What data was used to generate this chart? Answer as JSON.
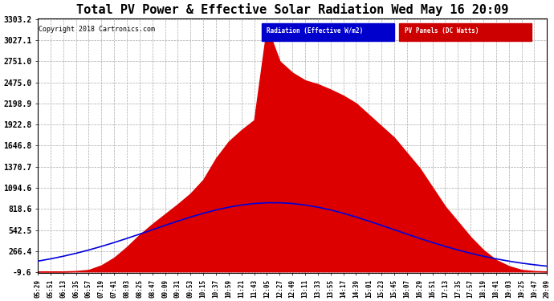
{
  "title": "Total PV Power & Effective Solar Radiation Wed May 16 20:09",
  "copyright": "Copyright 2018 Cartronics.com",
  "legend_labels": [
    "Radiation (Effective W/m2)",
    "PV Panels (DC Watts)"
  ],
  "legend_colors": [
    "#0000cc",
    "#cc0000"
  ],
  "yticks": [
    3303.2,
    3027.1,
    2751.0,
    2475.0,
    2198.9,
    1922.8,
    1646.8,
    1370.7,
    1094.6,
    818.6,
    542.5,
    266.4,
    -9.6
  ],
  "ymin": -9.6,
  "ymax": 3303.2,
  "background_color": "#ffffff",
  "plot_bg_color": "#ffffff",
  "grid_color": "#aaaaaa",
  "red_fill_color": "#dd0000",
  "blue_line_color": "#0000dd",
  "xtick_labels": [
    "05:29",
    "05:51",
    "06:13",
    "06:35",
    "06:57",
    "07:19",
    "07:41",
    "08:03",
    "08:25",
    "08:47",
    "09:09",
    "09:31",
    "09:53",
    "10:15",
    "10:37",
    "10:59",
    "11:21",
    "11:43",
    "12:05",
    "12:27",
    "12:49",
    "13:11",
    "13:33",
    "13:55",
    "14:17",
    "14:39",
    "15:01",
    "15:23",
    "15:45",
    "16:07",
    "16:29",
    "16:51",
    "17:13",
    "17:35",
    "17:57",
    "18:19",
    "18:41",
    "19:03",
    "19:25",
    "19:47",
    "20:09"
  ]
}
